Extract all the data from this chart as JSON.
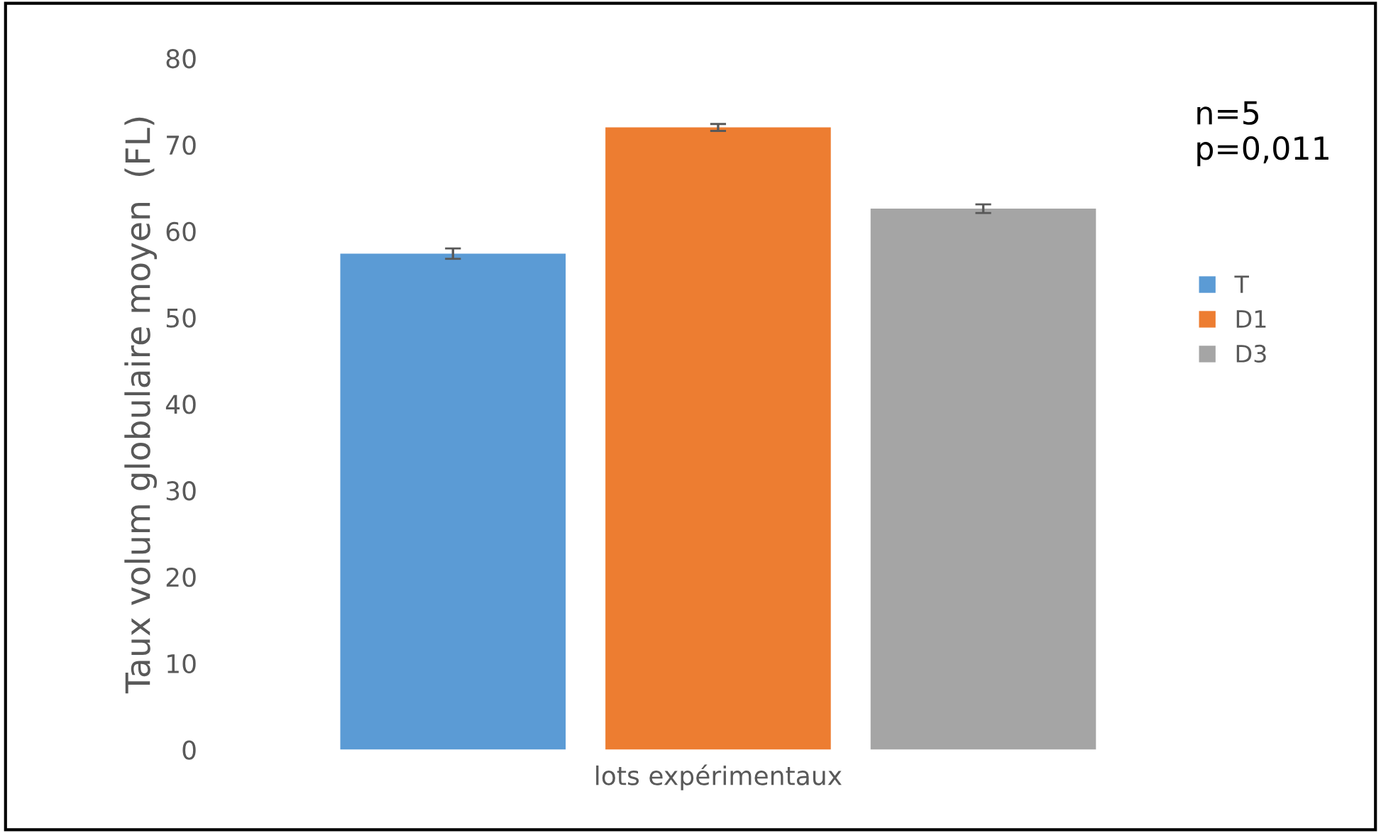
{
  "chart_data": {
    "type": "bar",
    "ylabel": "Taux volum globulaire moyen  (FL)",
    "xlabel": "lots expérimentaux",
    "categories": [
      null
    ],
    "series": [
      {
        "name": "T",
        "color": "#5b9bd5",
        "values": [
          57.4
        ],
        "errors": [
          0.6
        ]
      },
      {
        "name": "D1",
        "color": "#ed7d31",
        "values": [
          72.0
        ],
        "errors": [
          0.4
        ]
      },
      {
        "name": "D3",
        "color": "#a5a5a5",
        "values": [
          62.6
        ],
        "errors": [
          0.5
        ]
      }
    ],
    "ylim": [
      0,
      80
    ],
    "yticks": [
      0,
      10,
      20,
      30,
      40,
      50,
      60,
      70,
      80
    ],
    "grid": false,
    "legend": "right",
    "annotations": [
      "n=5\np=0,011"
    ]
  }
}
